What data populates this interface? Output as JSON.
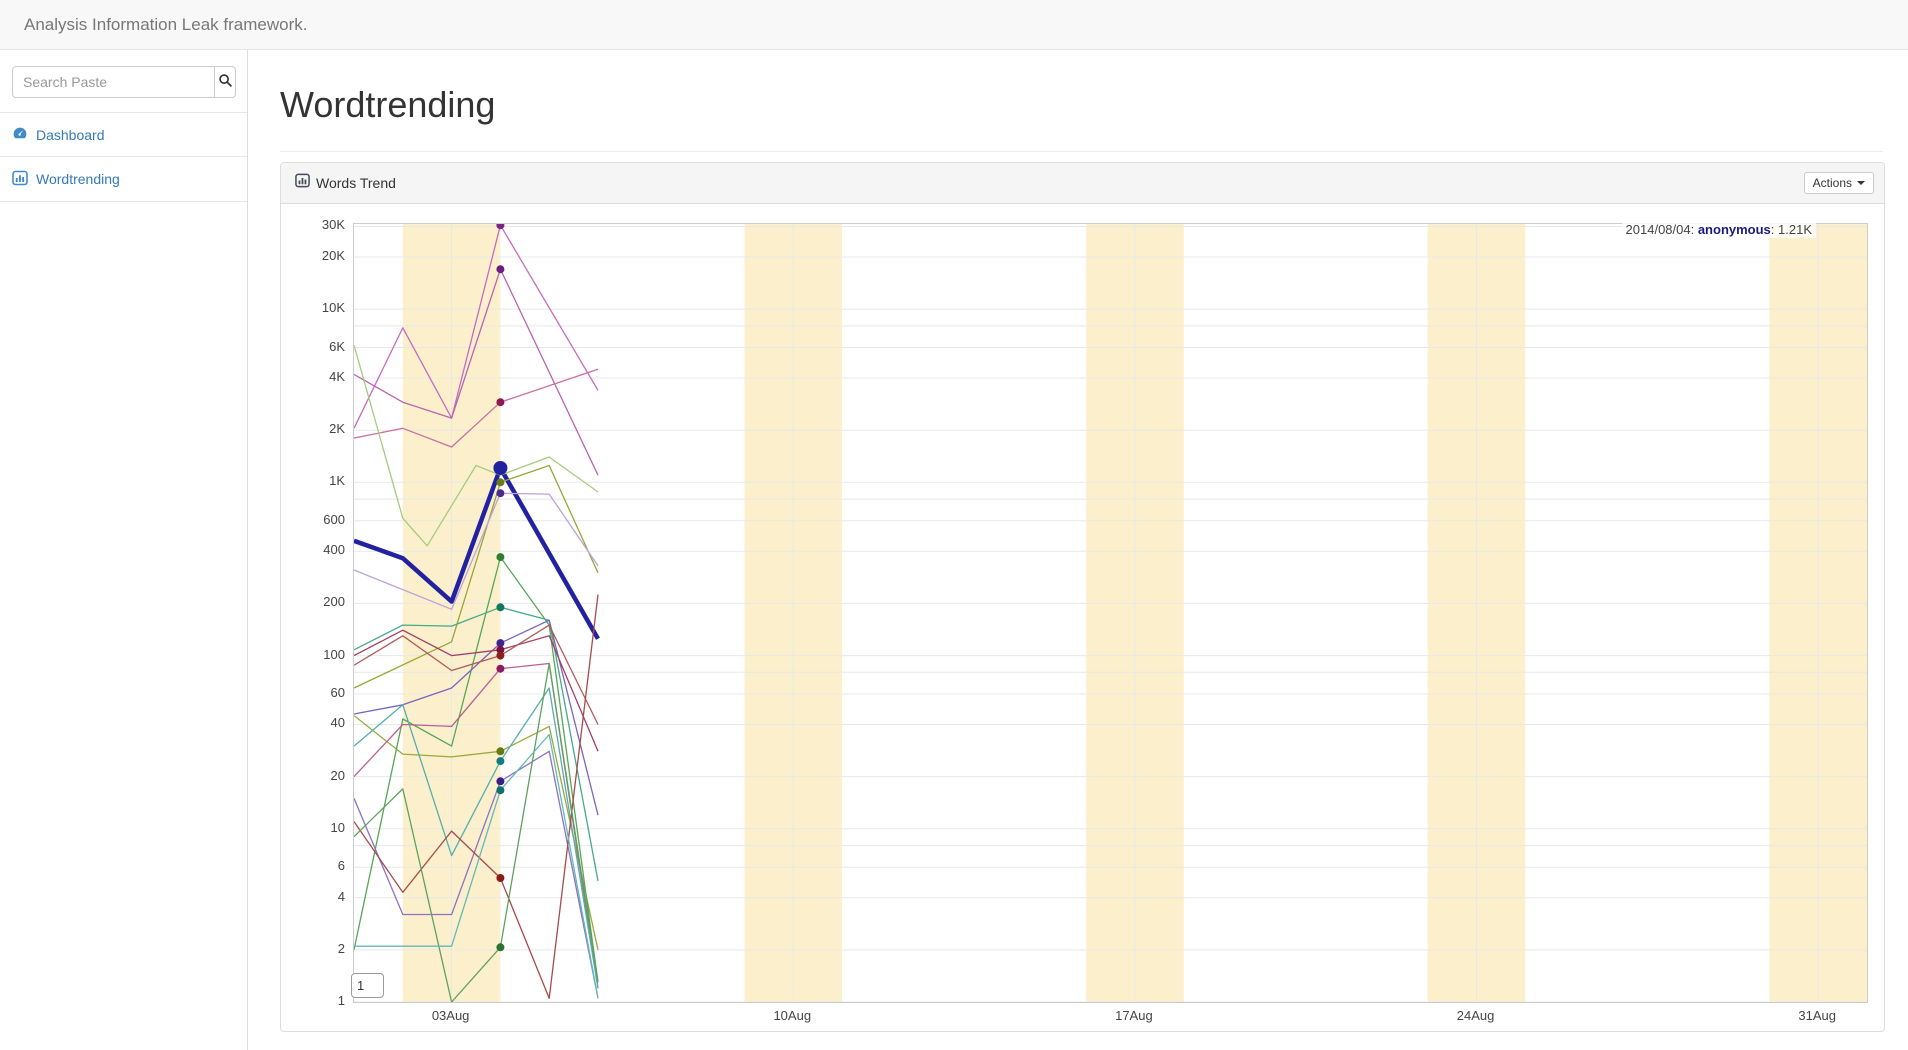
{
  "navbar": {
    "brand": "Analysis Information Leak framework."
  },
  "sidebar": {
    "search": {
      "placeholder": "Search Paste",
      "value": ""
    },
    "items": [
      {
        "label": "Dashboard",
        "icon": "dashboard-icon"
      },
      {
        "label": "Wordtrending",
        "icon": "bar-chart-icon"
      }
    ]
  },
  "main": {
    "page_title": "Wordtrending",
    "panel": {
      "title": "Words Trend",
      "actions_label": "Actions"
    },
    "page_indicator": "1"
  },
  "chart_data": {
    "type": "line",
    "title": "Words Trend",
    "x_unit": "days from 2014-08-01",
    "x_range": [
      0,
      31
    ],
    "y_scale": "log",
    "y_range": [
      1,
      31000
    ],
    "grid": true,
    "band_color": "#FBF0CB",
    "grid_color": "#e8e8e8",
    "border_color": "#cccccc",
    "weekend_bands": [
      [
        1,
        3
      ],
      [
        8,
        10
      ],
      [
        15,
        17
      ],
      [
        22,
        24
      ],
      [
        29,
        31
      ]
    ],
    "x_ticks": [
      {
        "day": 2,
        "label": "03Aug"
      },
      {
        "day": 9,
        "label": "10Aug"
      },
      {
        "day": 16,
        "label": "17Aug"
      },
      {
        "day": 23,
        "label": "24Aug"
      },
      {
        "day": 30,
        "label": "31Aug"
      }
    ],
    "y_ticks": [
      {
        "value": 30000,
        "label": "30K"
      },
      {
        "value": 20000,
        "label": "20K"
      },
      {
        "value": 10000,
        "label": "10K"
      },
      {
        "value": 6000,
        "label": "6K"
      },
      {
        "value": 4000,
        "label": "4K"
      },
      {
        "value": 2000,
        "label": "2K"
      },
      {
        "value": 1000,
        "label": "1K"
      },
      {
        "value": 600,
        "label": "600"
      },
      {
        "value": 400,
        "label": "400"
      },
      {
        "value": 200,
        "label": "200"
      },
      {
        "value": 100,
        "label": "100"
      },
      {
        "value": 60,
        "label": "60"
      },
      {
        "value": 40,
        "label": "40"
      },
      {
        "value": 20,
        "label": "20"
      },
      {
        "value": 10,
        "label": "10"
      },
      {
        "value": 6,
        "label": "6"
      },
      {
        "value": 4,
        "label": "4"
      },
      {
        "value": 2,
        "label": "2"
      },
      {
        "value": 1,
        "label": "1"
      }
    ],
    "y_gridlines_minor": [
      8000,
      800,
      80,
      8
    ],
    "highlight_day": 3,
    "hover_label": {
      "prefix": "2014/08/04: ",
      "series": "anonymous",
      "suffix": ": 1.21K"
    },
    "series": [
      {
        "name": "anonymous",
        "color": "#2222A0",
        "dot_color": "#2222A0",
        "line_width": 4.5,
        "marker_radius": 7,
        "points": [
          [
            0,
            460
          ],
          [
            1,
            365
          ],
          [
            2,
            205
          ],
          [
            3,
            1210
          ],
          [
            5,
            125
          ]
        ]
      },
      {
        "color": "#C46BC4",
        "dot_color": "#7A2382",
        "points": [
          [
            0,
            2050
          ],
          [
            1,
            7800
          ],
          [
            2,
            2350
          ],
          [
            3,
            30500
          ],
          [
            5,
            3400
          ]
        ]
      },
      {
        "color": "#B964B0",
        "dot_color": "#6A2080",
        "points": [
          [
            0,
            4200
          ],
          [
            1,
            2900
          ],
          [
            2,
            2350
          ],
          [
            3,
            17000
          ],
          [
            5,
            1100
          ]
        ]
      },
      {
        "color": "#C9719D",
        "dot_color": "#8B1A55",
        "points": [
          [
            0,
            1800
          ],
          [
            1,
            2050
          ],
          [
            2,
            1600
          ],
          [
            3,
            2900
          ],
          [
            5,
            4500
          ]
        ]
      },
      {
        "color": "#A3CC7E",
        "marker": false,
        "points": [
          [
            0,
            6200
          ],
          [
            1,
            620
          ],
          [
            1.5,
            430
          ],
          [
            2.5,
            1250
          ],
          [
            3,
            1100
          ],
          [
            4,
            1400
          ],
          [
            5,
            880
          ]
        ]
      },
      {
        "color": "#98A636",
        "dot_color": "#6B7A1E",
        "points": [
          [
            0,
            65
          ],
          [
            2,
            120
          ],
          [
            3,
            1000
          ],
          [
            4,
            1250
          ],
          [
            5,
            300
          ]
        ]
      },
      {
        "color": "#9AA83A",
        "dot_color": "#667A14",
        "points": [
          [
            0,
            45
          ],
          [
            1,
            27
          ],
          [
            2,
            26
          ],
          [
            3,
            28
          ],
          [
            4,
            39
          ],
          [
            5,
            2
          ]
        ]
      },
      {
        "color": "#BBA3DA",
        "dot_color": "#4B2B8F",
        "points": [
          [
            0,
            312
          ],
          [
            2,
            185
          ],
          [
            3,
            865
          ],
          [
            4,
            855
          ],
          [
            5,
            330
          ]
        ]
      },
      {
        "color": "#57A557",
        "dot_color": "#2E7D32",
        "points": [
          [
            0,
            2
          ],
          [
            1,
            43
          ],
          [
            2,
            30
          ],
          [
            3,
            370
          ],
          [
            4,
            150
          ],
          [
            5,
            1.3
          ]
        ]
      },
      {
        "color": "#46A98B",
        "dot_color": "#11795B",
        "points": [
          [
            0,
            108
          ],
          [
            1,
            150
          ],
          [
            2,
            148
          ],
          [
            3,
            190
          ],
          [
            4,
            160
          ],
          [
            5,
            5
          ]
        ]
      },
      {
        "color": "#7E62BB",
        "dot_color": "#3F2290",
        "points": [
          [
            0,
            46
          ],
          [
            1,
            52
          ],
          [
            2,
            65
          ],
          [
            3,
            118
          ],
          [
            4,
            160
          ],
          [
            5,
            12
          ]
        ]
      },
      {
        "color": "#A23E64",
        "dot_color": "#7A1040",
        "points": [
          [
            0,
            100
          ],
          [
            1,
            140
          ],
          [
            2,
            100
          ],
          [
            3,
            108
          ],
          [
            4,
            130
          ],
          [
            5,
            28
          ]
        ]
      },
      {
        "color": "#B05B5B",
        "dot_color": "#8B2020",
        "points": [
          [
            0,
            88
          ],
          [
            1,
            130
          ],
          [
            2,
            82
          ],
          [
            3,
            100
          ],
          [
            4,
            150
          ],
          [
            5,
            40
          ]
        ]
      },
      {
        "color": "#BC5E92",
        "dot_color": "#8B1A62",
        "points": [
          [
            0,
            20
          ],
          [
            1,
            40
          ],
          [
            2,
            39
          ],
          [
            3,
            84
          ],
          [
            4,
            90
          ],
          [
            5,
            1.2
          ]
        ]
      },
      {
        "color": "#54AEAE",
        "dot_color": "#127C7C",
        "points": [
          [
            0,
            30
          ],
          [
            1,
            52
          ],
          [
            2,
            7
          ],
          [
            3,
            24.6
          ],
          [
            4,
            65
          ],
          [
            5,
            1.2
          ]
        ]
      },
      {
        "color": "#8A72C4",
        "dot_color": "#3A1D85",
        "points": [
          [
            0,
            15
          ],
          [
            1,
            3.2
          ],
          [
            2,
            3.2
          ],
          [
            3,
            18.8
          ],
          [
            4,
            28
          ],
          [
            5,
            1.05
          ]
        ]
      },
      {
        "color": "#A64A4A",
        "dot_color": "#8B1A1A",
        "points": [
          [
            0,
            11
          ],
          [
            1,
            4.3
          ],
          [
            2,
            9.7
          ],
          [
            3,
            5.2
          ],
          [
            4,
            1.05
          ],
          [
            5,
            225
          ]
        ]
      },
      {
        "color": "#5FA05F",
        "dot_color": "#2F6F2F",
        "points": [
          [
            0,
            9
          ],
          [
            1,
            17
          ],
          [
            2,
            1
          ],
          [
            3,
            2.07
          ],
          [
            4,
            90
          ],
          [
            5,
            1.3
          ]
        ]
      },
      {
        "color": "#63B8B8",
        "dot_color": "#0F7070",
        "points": [
          [
            0,
            2.1
          ],
          [
            1,
            2.1
          ],
          [
            2,
            2.1
          ],
          [
            3,
            16.7
          ],
          [
            4,
            35
          ],
          [
            5,
            1.05
          ]
        ]
      }
    ]
  }
}
